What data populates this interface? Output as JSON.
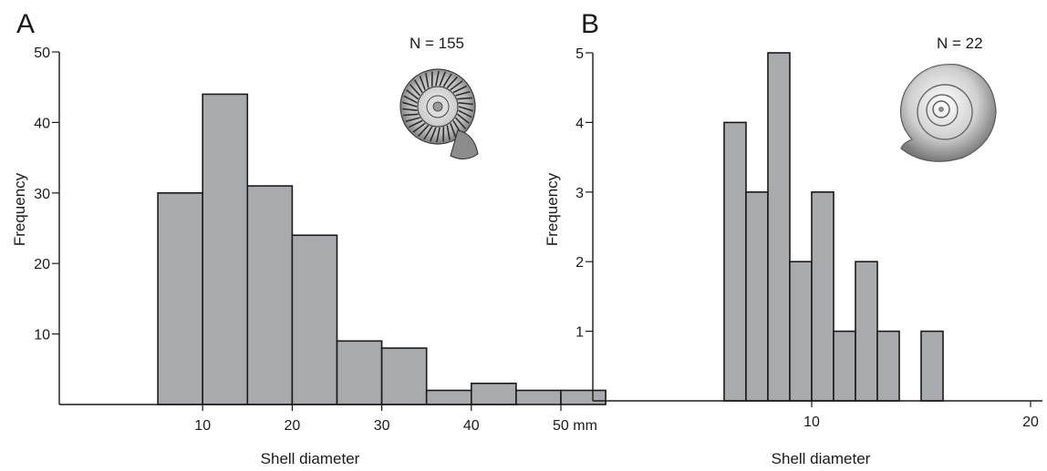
{
  "chart_data": [
    {
      "type": "bar",
      "panel_label": "A",
      "annotation": "N = 155",
      "xlabel": "Shell diameter",
      "ylabel": "Frequency",
      "x_unit_suffix": " mm",
      "xlim": [
        0,
        50
      ],
      "ylim": [
        0,
        50
      ],
      "x_ticks": [
        10,
        20,
        30,
        40,
        50
      ],
      "y_ticks": [
        10,
        20,
        30,
        40,
        50
      ],
      "bin_width": 5,
      "bins": [
        {
          "start": 5,
          "end": 10,
          "value": 30
        },
        {
          "start": 10,
          "end": 15,
          "value": 44
        },
        {
          "start": 15,
          "end": 20,
          "value": 31
        },
        {
          "start": 20,
          "end": 25,
          "value": 24
        },
        {
          "start": 25,
          "end": 30,
          "value": 9
        },
        {
          "start": 30,
          "end": 35,
          "value": 8
        },
        {
          "start": 35,
          "end": 40,
          "value": 2
        },
        {
          "start": 40,
          "end": 45,
          "value": 3
        },
        {
          "start": 45,
          "end": 50,
          "value": 2
        },
        {
          "start": 50,
          "end": 55,
          "value": 2
        }
      ],
      "image": "ribbed-ammonite-icon",
      "bar_color": "#a9aaad",
      "grid": false
    },
    {
      "type": "bar",
      "panel_label": "B",
      "annotation": "N = 22",
      "xlabel": "Shell diameter",
      "ylabel": "Frequency",
      "xlim": [
        0,
        20
      ],
      "ylim": [
        0,
        5
      ],
      "x_ticks": [
        10,
        20
      ],
      "y_ticks": [
        1,
        2,
        3,
        4,
        5
      ],
      "bin_width": 1,
      "bins": [
        {
          "start": 6,
          "end": 7,
          "value": 4
        },
        {
          "start": 7,
          "end": 8,
          "value": 3
        },
        {
          "start": 8,
          "end": 9,
          "value": 5
        },
        {
          "start": 9,
          "end": 10,
          "value": 2
        },
        {
          "start": 10,
          "end": 11,
          "value": 3
        },
        {
          "start": 11,
          "end": 12,
          "value": 1
        },
        {
          "start": 12,
          "end": 13,
          "value": 2
        },
        {
          "start": 13,
          "end": 14,
          "value": 1
        },
        {
          "start": 15,
          "end": 16,
          "value": 1
        }
      ],
      "image": "smooth-ammonite-icon",
      "bar_color": "#a9aaad",
      "grid": false
    }
  ]
}
